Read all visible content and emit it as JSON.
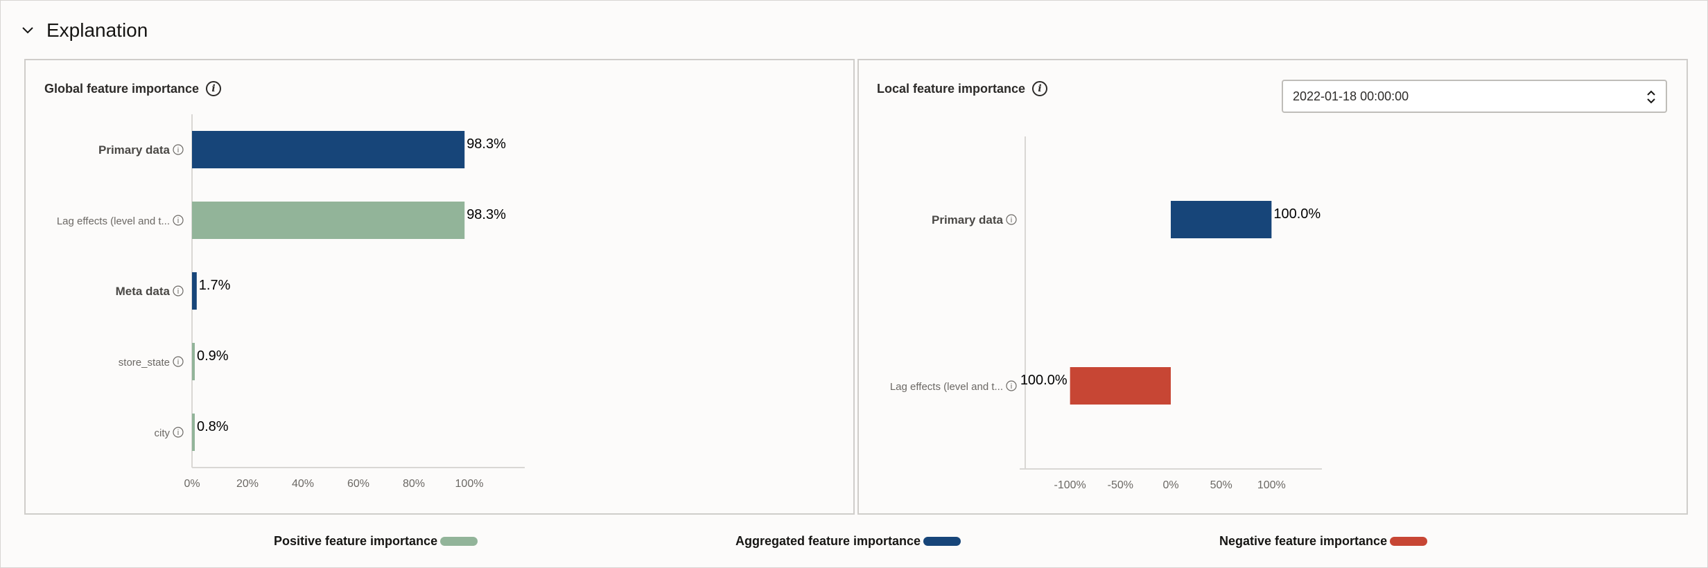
{
  "section": {
    "title": "Explanation",
    "icon": "chevron-down-icon"
  },
  "global": {
    "title": "Global feature importance",
    "info_icon": "info-icon",
    "chart_data": {
      "type": "bar",
      "orientation": "horizontal",
      "categories": [
        "Primary data",
        "Lag effects (level and t...",
        "Meta data",
        "store_state",
        "city"
      ],
      "category_bold": [
        true,
        false,
        true,
        false,
        false
      ],
      "values": [
        98.3,
        98.3,
        1.7,
        0.9,
        0.8
      ],
      "value_labels": [
        "98.3%",
        "98.3%",
        "1.7%",
        "0.9%",
        "0.8%"
      ],
      "bar_kind": [
        "aggregated",
        "positive",
        "aggregated",
        "positive",
        "positive"
      ],
      "xlim": [
        0,
        120
      ],
      "xticks": [
        0,
        20,
        40,
        60,
        80,
        100
      ],
      "xtick_labels": [
        "0%",
        "20%",
        "40%",
        "60%",
        "80%",
        "100%"
      ]
    }
  },
  "local": {
    "title": "Local feature importance",
    "info_icon": "info-icon",
    "date_select": {
      "value": "2022-01-18 00:00:00",
      "icon": "chevron-up-down-icon"
    },
    "chart_data": {
      "type": "bar",
      "orientation": "horizontal",
      "categories": [
        "Primary data",
        "Lag effects (level and t..."
      ],
      "category_bold": [
        true,
        false
      ],
      "values": [
        100.0,
        -100.0
      ],
      "value_labels": [
        "100.0%",
        "100.0%"
      ],
      "bar_kind": [
        "aggregated",
        "negative"
      ],
      "xlim": [
        -150,
        150
      ],
      "xticks": [
        -100,
        -50,
        0,
        50,
        100
      ],
      "xtick_labels": [
        "-100%",
        "-50%",
        "0%",
        "50%",
        "100%"
      ]
    }
  },
  "legend": [
    {
      "label": "Positive feature importance",
      "kind": "positive"
    },
    {
      "label": "Aggregated feature importance",
      "kind": "aggregated"
    },
    {
      "label": "Negative feature importance",
      "kind": "negative"
    }
  ],
  "colors": {
    "positive": "#92b499",
    "aggregated": "#174579",
    "negative": "#c74634",
    "axis": "#d9d7d4",
    "tick_text": "#6b6864",
    "value_text": "#000000"
  }
}
